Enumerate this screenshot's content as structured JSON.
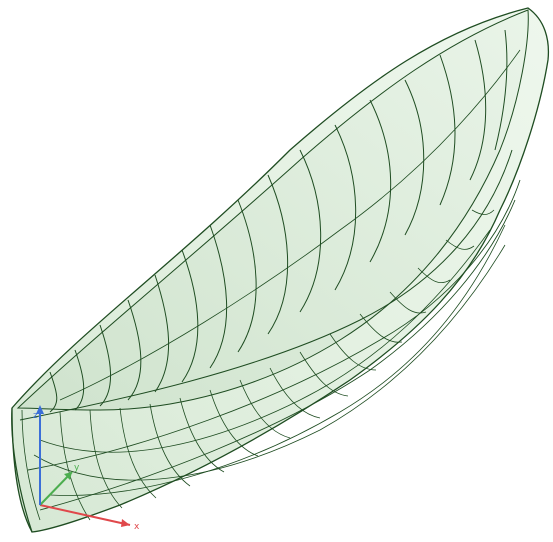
{
  "viewport": {
    "background": "#ffffff",
    "hull_fill": "#dfeedd",
    "hull_fill_light": "#edf6ec",
    "hull_line": "#1f4d22"
  },
  "axes": {
    "x_label": "x",
    "y_label": "y",
    "z_label": "z",
    "x_color": "#e0484b",
    "y_color": "#4cae4f",
    "z_color": "#3b6fd8"
  }
}
